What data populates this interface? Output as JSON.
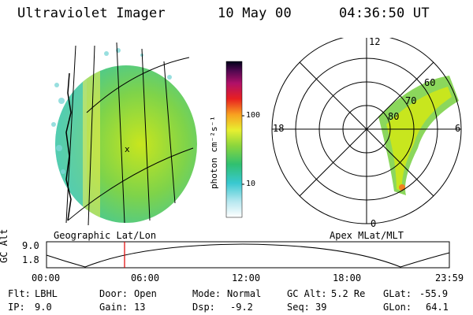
{
  "header": {
    "instrument": "Ultraviolet Imager",
    "date": "10 May 00",
    "time": "04:36:50 UT"
  },
  "colorbar": {
    "label": "photon cm⁻²s⁻¹",
    "ticks": [
      "100",
      "10"
    ]
  },
  "geo_panel": {
    "title": "Geographic Lat/Lon"
  },
  "polar_panel": {
    "title": "Apex  MLat/MLT",
    "mlt_labels": {
      "top": "12",
      "bottom": "0",
      "left": "18",
      "right": "6"
    },
    "lat_labels": [
      "60",
      "70",
      "80"
    ]
  },
  "orbit_plot": {
    "ylabel": "GC Alt",
    "yticks": [
      "9.0",
      "1.8"
    ],
    "xticks": [
      "00:00",
      "06:00",
      "12:00",
      "18:00",
      "23:59"
    ],
    "marker_time": "04:36:50"
  },
  "info": {
    "filter_label": "Flt:",
    "filter_value": "LBHL",
    "ip_label": "IP:",
    "ip_value": "9.0",
    "door_label": "Door:",
    "door_value": "Open",
    "gain_label": "Gain:",
    "gain_value": "13",
    "mode_label": "Mode:",
    "mode_value": "Normal",
    "dsp_label": "Dsp:",
    "dsp_value": "-9.2",
    "gcalt_label": "GC Alt:",
    "gcalt_value": "5.2 Re",
    "seq_label": "Seq:",
    "seq_value": "39",
    "glat_label": "GLat:",
    "glat_value": "-55.9",
    "glon_label": "GLon:",
    "glon_value": "64.1"
  }
}
